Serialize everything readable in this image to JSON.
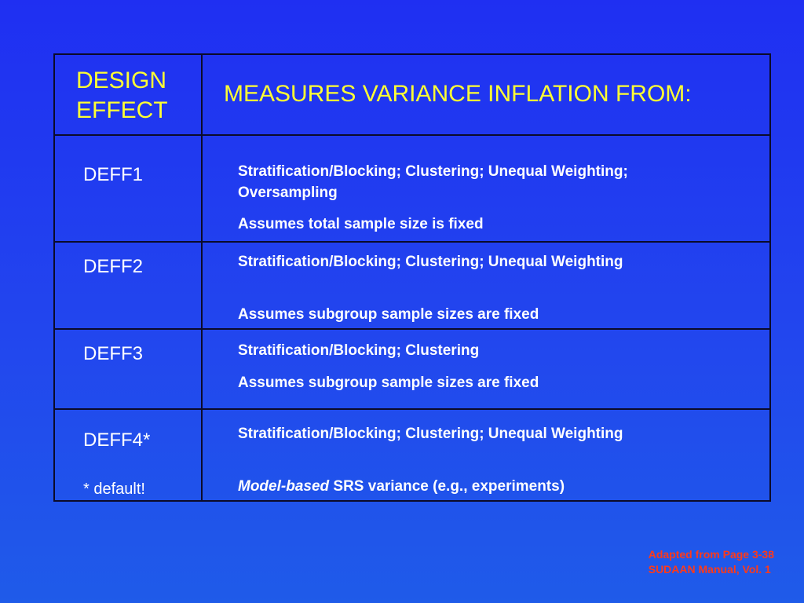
{
  "header": {
    "col1_line1": "DESIGN",
    "col1_line2": "EFFECT",
    "col2": "MEASURES VARIANCE INFLATION FROM:"
  },
  "rows": [
    {
      "label": "DEFF1",
      "desc": "Stratification/Blocking; Clustering; Unequal Weighting; Oversampling",
      "assumption": "Assumes total sample size is fixed"
    },
    {
      "label": "DEFF2",
      "desc": "Stratification/Blocking; Clustering; Unequal Weighting",
      "assumption": "Assumes subgroup sample sizes are fixed"
    },
    {
      "label": "DEFF3",
      "desc": "Stratification/Blocking; Clustering",
      "assumption": "Assumes subgroup sample sizes are fixed"
    },
    {
      "label": "DEFF4*",
      "note": "* default!",
      "desc": "Stratification/Blocking; Clustering; Unequal Weighting",
      "assumption_italic": "Model-based",
      "assumption_rest": " SRS variance (e.g., experiments)"
    }
  ],
  "credit": {
    "line1": "Adapted from Page 3-38",
    "line2": "SUDAAN Manual, Vol. 1"
  }
}
